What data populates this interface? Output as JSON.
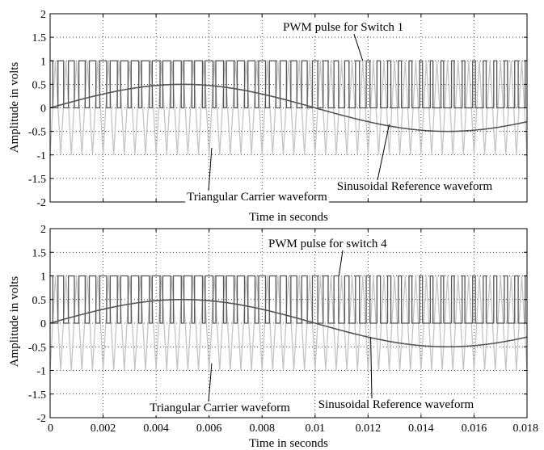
{
  "chart_data": [
    {
      "type": "line",
      "panel": "top",
      "xlabel": "Time in seconds",
      "ylabel": "Amplitude in volts",
      "xlim": [
        0,
        0.018
      ],
      "ylim": [
        -2,
        2
      ],
      "yticks": [
        -2,
        -1.5,
        -1,
        -0.5,
        0,
        0.5,
        1,
        1.5,
        2
      ],
      "ytick_labels": [
        "-2",
        "-1.5",
        "-1",
        "-0.5",
        "0",
        "0.5",
        "1",
        "1.5",
        "2"
      ],
      "xticks": [
        0,
        0.002,
        0.004,
        0.006,
        0.008,
        0.01,
        0.012,
        0.014,
        0.016,
        0.018
      ],
      "xtick_labels": [],
      "grid": true,
      "series": [
        {
          "name": "Triangular Carrier waveform",
          "kind": "triangle",
          "period": 0.0004,
          "min": -1,
          "max": 1,
          "color": "#c4c4c4"
        },
        {
          "name": "Sinusoidal Reference waveform",
          "kind": "sine",
          "amplitude": 0.5,
          "frequency": 50,
          "phase_shift": 0,
          "color": "#555555"
        },
        {
          "name": "PWM pulse for Switch 1",
          "kind": "pwm",
          "low": 0,
          "high": 1,
          "color": "#555555"
        }
      ],
      "annotations": [
        {
          "text": "PWM pulse for Switch 1",
          "target_x": 0.0118,
          "target_y": 1.0,
          "pointer": "up"
        },
        {
          "text": "Sinusoidal Reference waveform",
          "target_x": 0.0128,
          "target_y": -0.35,
          "pointer": "down"
        },
        {
          "text": "Triangular Carrier waveform",
          "target_x": 0.0061,
          "target_y": -0.85,
          "pointer": "down"
        }
      ]
    },
    {
      "type": "line",
      "panel": "bottom",
      "xlabel": "Time in seconds",
      "ylabel": "Amplitude in volts",
      "xlim": [
        0,
        0.018
      ],
      "ylim": [
        -2,
        2
      ],
      "yticks": [
        -2,
        -1.5,
        -1,
        -0.5,
        0,
        0.5,
        1,
        1.5,
        2
      ],
      "ytick_labels": [
        "-2",
        "-1.5",
        "-1",
        "-0.5",
        "0",
        "0.5",
        "1",
        "1.5",
        "2"
      ],
      "xticks": [
        0,
        0.002,
        0.004,
        0.006,
        0.008,
        0.01,
        0.012,
        0.014,
        0.016,
        0.018
      ],
      "xtick_labels": [
        "0",
        "0.002",
        "0.004",
        "0.006",
        "0.008",
        "0.01",
        "0.012",
        "0.014",
        "0.016",
        "0.018"
      ],
      "grid": true,
      "series": [
        {
          "name": "Triangular Carrier waveform",
          "kind": "triangle",
          "period": 0.0004,
          "min": -1,
          "max": 1,
          "color": "#c4c4c4"
        },
        {
          "name": "Sinusoidal Reference waveform",
          "kind": "sine",
          "amplitude": 0.5,
          "frequency": 50,
          "phase_shift": 0,
          "color": "#555555"
        },
        {
          "name": "PWM pulse for switch 4",
          "kind": "pwm",
          "low": 0,
          "high": 1,
          "color": "#555555"
        }
      ],
      "annotations": [
        {
          "text": "PWM pulse for switch 4",
          "target_x": 0.0109,
          "target_y": 1.0,
          "pointer": "up"
        },
        {
          "text": "Sinusoidal Reference waveform",
          "target_x": 0.0121,
          "target_y": -0.3,
          "pointer": "down"
        },
        {
          "text": "Triangular Carrier waveform",
          "target_x": 0.0061,
          "target_y": -0.85,
          "pointer": "down"
        }
      ]
    }
  ]
}
